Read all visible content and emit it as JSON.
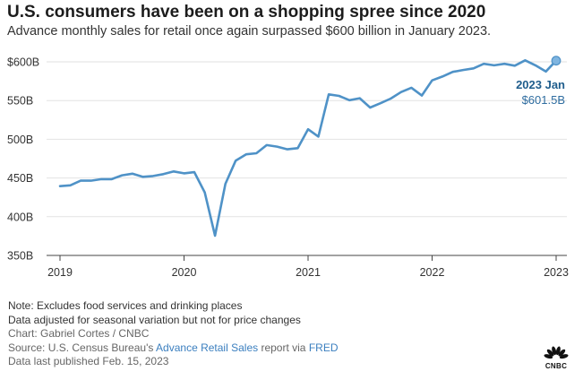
{
  "header": {
    "title": "U.S. consumers have been on a shopping spree since 2020",
    "subtitle": "Advance monthly sales for retail once again surpassed $600 billion in January 2023."
  },
  "chart_data": {
    "type": "line",
    "title": "U.S. consumers have been on a shopping spree since 2020",
    "subtitle": "Advance monthly sales for retail once again surpassed $600 billion in January 2023.",
    "xlabel": "",
    "ylabel": "",
    "ylim": [
      350,
      600
    ],
    "xlim": [
      2019,
      2023
    ],
    "yticks": [
      350,
      400,
      450,
      500,
      550,
      600
    ],
    "ytick_labels": [
      "350B",
      "400B",
      "450B",
      "500B",
      "550B",
      "$600B"
    ],
    "xticks": [
      2019,
      2020,
      2021,
      2022,
      2023
    ],
    "xtick_labels": [
      "2019",
      "2020",
      "2021",
      "2022",
      "2023"
    ],
    "grid": "horizontal",
    "color": "#4f92c7",
    "series": [
      {
        "name": "Advance retail sales",
        "unit": "billion USD",
        "x": [
          "2019-01",
          "2019-02",
          "2019-03",
          "2019-04",
          "2019-05",
          "2019-06",
          "2019-07",
          "2019-08",
          "2019-09",
          "2019-10",
          "2019-11",
          "2019-12",
          "2020-01",
          "2020-02",
          "2020-03",
          "2020-04",
          "2020-05",
          "2020-06",
          "2020-07",
          "2020-08",
          "2020-09",
          "2020-10",
          "2020-11",
          "2020-12",
          "2021-01",
          "2021-02",
          "2021-03",
          "2021-04",
          "2021-05",
          "2021-06",
          "2021-07",
          "2021-08",
          "2021-09",
          "2021-10",
          "2021-11",
          "2021-12",
          "2022-01",
          "2022-02",
          "2022-03",
          "2022-04",
          "2022-05",
          "2022-06",
          "2022-07",
          "2022-08",
          "2022-09",
          "2022-10",
          "2022-11",
          "2022-12",
          "2023-01"
        ],
        "values": [
          439.5,
          440.5,
          446.5,
          446.5,
          448.5,
          448.5,
          453.5,
          455.5,
          451.5,
          452.5,
          455.0,
          458.5,
          456.0,
          457.5,
          431.5,
          375.5,
          442.5,
          472.5,
          480.5,
          482.0,
          492.5,
          490.5,
          487.0,
          488.5,
          513.0,
          503.5,
          558.0,
          556.0,
          550.5,
          553.0,
          541.0,
          546.5,
          552.5,
          561.0,
          566.5,
          556.5,
          576.0,
          581.0,
          587.0,
          589.5,
          591.5,
          597.5,
          595.5,
          597.5,
          595.0,
          602.0,
          595.5,
          587.5,
          601.5
        ]
      }
    ],
    "annotation": {
      "label": "2023 Jan",
      "value_label": "$601.5B",
      "x": "2023-01",
      "y": 601.5
    }
  },
  "footer": {
    "note1": "Note: Excludes food services and drinking places",
    "note2": "Data adjusted for seasonal variation but not for price changes",
    "credit": "Chart: Gabriel Cortes / CNBC",
    "source_prefix": "Source: U.S. Census Bureau's ",
    "source_link1": "Advance Retail Sales",
    "source_mid": " report via ",
    "source_link2": "FRED",
    "published": "Data last published Feb. 15, 2023"
  },
  "logo": {
    "name": "CNBC",
    "text": "CNBC"
  }
}
